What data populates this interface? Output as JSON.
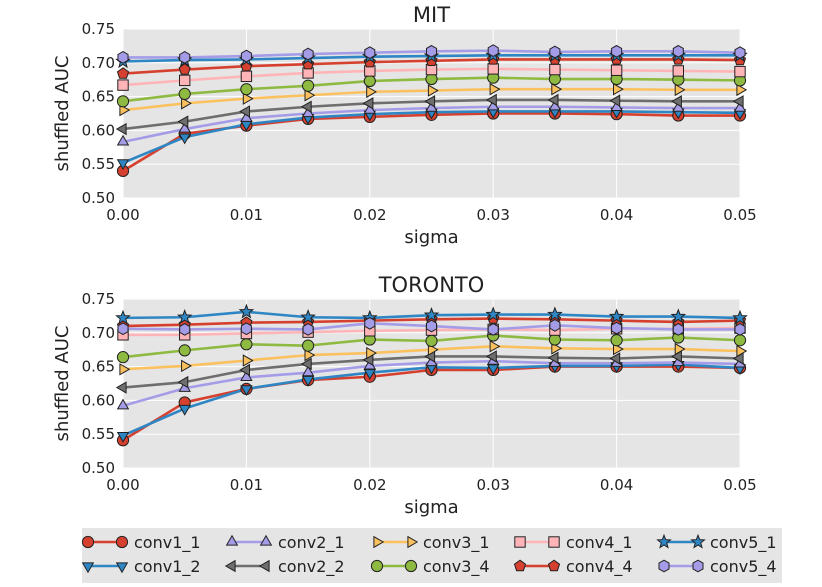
{
  "chart_data": [
    {
      "type": "line",
      "title": "MIT",
      "xlabel": "sigma",
      "ylabel": "shuffled AUC",
      "xlim": [
        0.0,
        0.05
      ],
      "ylim": [
        0.5,
        0.75
      ],
      "x": [
        0.0,
        0.005,
        0.01,
        0.015,
        0.02,
        0.025,
        0.03,
        0.035,
        0.04,
        0.045,
        0.05
      ],
      "xticks": [
        "0.00",
        "0.01",
        "0.02",
        "0.03",
        "0.04",
        "0.05"
      ],
      "yticks": [
        "0.50",
        "0.55",
        "0.60",
        "0.65",
        "0.70",
        "0.75"
      ],
      "grid": true,
      "series": [
        {
          "name": "conv1_1",
          "values": [
            0.54,
            0.595,
            0.607,
            0.617,
            0.62,
            0.623,
            0.625,
            0.625,
            0.624,
            0.622,
            0.622
          ]
        },
        {
          "name": "conv1_2",
          "values": [
            0.552,
            0.59,
            0.609,
            0.619,
            0.624,
            0.627,
            0.628,
            0.628,
            0.628,
            0.627,
            0.626
          ]
        },
        {
          "name": "conv2_1",
          "values": [
            0.583,
            0.602,
            0.618,
            0.625,
            0.63,
            0.633,
            0.635,
            0.635,
            0.634,
            0.633,
            0.633
          ]
        },
        {
          "name": "conv2_2",
          "values": [
            0.602,
            0.613,
            0.628,
            0.635,
            0.64,
            0.643,
            0.645,
            0.645,
            0.644,
            0.643,
            0.643
          ]
        },
        {
          "name": "conv3_1",
          "values": [
            0.63,
            0.64,
            0.647,
            0.652,
            0.657,
            0.659,
            0.661,
            0.661,
            0.661,
            0.66,
            0.66
          ]
        },
        {
          "name": "conv3_4",
          "values": [
            0.643,
            0.654,
            0.661,
            0.666,
            0.673,
            0.676,
            0.678,
            0.676,
            0.676,
            0.675,
            0.674
          ]
        },
        {
          "name": "conv4_1",
          "values": [
            0.667,
            0.674,
            0.68,
            0.685,
            0.688,
            0.69,
            0.691,
            0.69,
            0.689,
            0.688,
            0.687
          ]
        },
        {
          "name": "conv4_4",
          "values": [
            0.684,
            0.69,
            0.695,
            0.698,
            0.701,
            0.703,
            0.705,
            0.705,
            0.705,
            0.705,
            0.704
          ]
        },
        {
          "name": "conv5_1",
          "values": [
            0.702,
            0.704,
            0.705,
            0.707,
            0.709,
            0.71,
            0.711,
            0.711,
            0.711,
            0.711,
            0.711
          ]
        },
        {
          "name": "conv5_4",
          "values": [
            0.708,
            0.708,
            0.71,
            0.713,
            0.715,
            0.717,
            0.718,
            0.716,
            0.717,
            0.717,
            0.715
          ]
        }
      ]
    },
    {
      "type": "line",
      "title": "TORONTO",
      "xlabel": "sigma",
      "ylabel": "shuffled AUC",
      "xlim": [
        0.0,
        0.05
      ],
      "ylim": [
        0.5,
        0.75
      ],
      "x": [
        0.0,
        0.005,
        0.01,
        0.015,
        0.02,
        0.025,
        0.03,
        0.035,
        0.04,
        0.045,
        0.05
      ],
      "xticks": [
        "0.00",
        "0.01",
        "0.02",
        "0.03",
        "0.04",
        "0.05"
      ],
      "yticks": [
        "0.50",
        "0.55",
        "0.60",
        "0.65",
        "0.70",
        "0.75"
      ],
      "grid": true,
      "series": [
        {
          "name": "conv1_1",
          "values": [
            0.541,
            0.597,
            0.617,
            0.63,
            0.635,
            0.645,
            0.645,
            0.65,
            0.65,
            0.65,
            0.648
          ]
        },
        {
          "name": "conv1_2",
          "values": [
            0.548,
            0.588,
            0.617,
            0.631,
            0.641,
            0.649,
            0.648,
            0.651,
            0.651,
            0.653,
            0.648
          ]
        },
        {
          "name": "conv2_1",
          "values": [
            0.592,
            0.618,
            0.634,
            0.641,
            0.651,
            0.656,
            0.658,
            0.655,
            0.655,
            0.656,
            0.654
          ]
        },
        {
          "name": "conv2_2",
          "values": [
            0.619,
            0.627,
            0.645,
            0.654,
            0.66,
            0.665,
            0.665,
            0.663,
            0.662,
            0.665,
            0.662
          ]
        },
        {
          "name": "conv3_1",
          "values": [
            0.646,
            0.651,
            0.659,
            0.667,
            0.67,
            0.675,
            0.68,
            0.677,
            0.676,
            0.676,
            0.673
          ]
        },
        {
          "name": "conv3_4",
          "values": [
            0.664,
            0.674,
            0.683,
            0.681,
            0.69,
            0.688,
            0.696,
            0.69,
            0.689,
            0.693,
            0.689
          ]
        },
        {
          "name": "conv4_1",
          "values": [
            0.697,
            0.697,
            0.699,
            0.701,
            0.703,
            0.704,
            0.705,
            0.704,
            0.706,
            0.706,
            0.707
          ]
        },
        {
          "name": "conv4_4",
          "values": [
            0.71,
            0.712,
            0.715,
            0.716,
            0.718,
            0.72,
            0.721,
            0.72,
            0.718,
            0.716,
            0.718
          ]
        },
        {
          "name": "conv5_1",
          "values": [
            0.722,
            0.723,
            0.731,
            0.723,
            0.722,
            0.726,
            0.727,
            0.727,
            0.724,
            0.724,
            0.722
          ]
        },
        {
          "name": "conv5_4",
          "values": [
            0.706,
            0.705,
            0.706,
            0.705,
            0.714,
            0.71,
            0.705,
            0.711,
            0.707,
            0.705,
            0.705
          ]
        }
      ]
    }
  ],
  "legend": {
    "position": "bottom",
    "entries": [
      "conv1_1",
      "conv1_2",
      "conv2_1",
      "conv2_2",
      "conv3_1",
      "conv3_4",
      "conv4_1",
      "conv4_4",
      "conv5_1",
      "conv5_4"
    ]
  },
  "series_style": {
    "conv1_1": {
      "line": "#d6402f",
      "face": "#d6402f",
      "marker": "circle"
    },
    "conv1_2": {
      "line": "#2f86c4",
      "face": "#2f86c4",
      "marker": "tri-down"
    },
    "conv2_1": {
      "line": "#a59ce8",
      "face": "#a59ce8",
      "marker": "tri-up"
    },
    "conv2_2": {
      "line": "#6e6e6e",
      "face": "#6e6e6e",
      "marker": "tri-left"
    },
    "conv3_1": {
      "line": "#fbc15e",
      "face": "#fbc15e",
      "marker": "tri-right"
    },
    "conv3_4": {
      "line": "#8eba42",
      "face": "#8eba42",
      "marker": "circle"
    },
    "conv4_1": {
      "line": "#ffb5b8",
      "face": "#ffb5b8",
      "marker": "square"
    },
    "conv4_4": {
      "line": "#d6402f",
      "face": "#d6402f",
      "marker": "pentagon"
    },
    "conv5_1": {
      "line": "#2f86c4",
      "face": "#2f86c4",
      "marker": "star"
    },
    "conv5_4": {
      "line": "#a59ce8",
      "face": "#a59ce8",
      "marker": "hexagon"
    }
  },
  "colors": {
    "plot_background": "#e5e5e5",
    "grid": "#ffffff",
    "legend_background": "#e5e5e5"
  }
}
